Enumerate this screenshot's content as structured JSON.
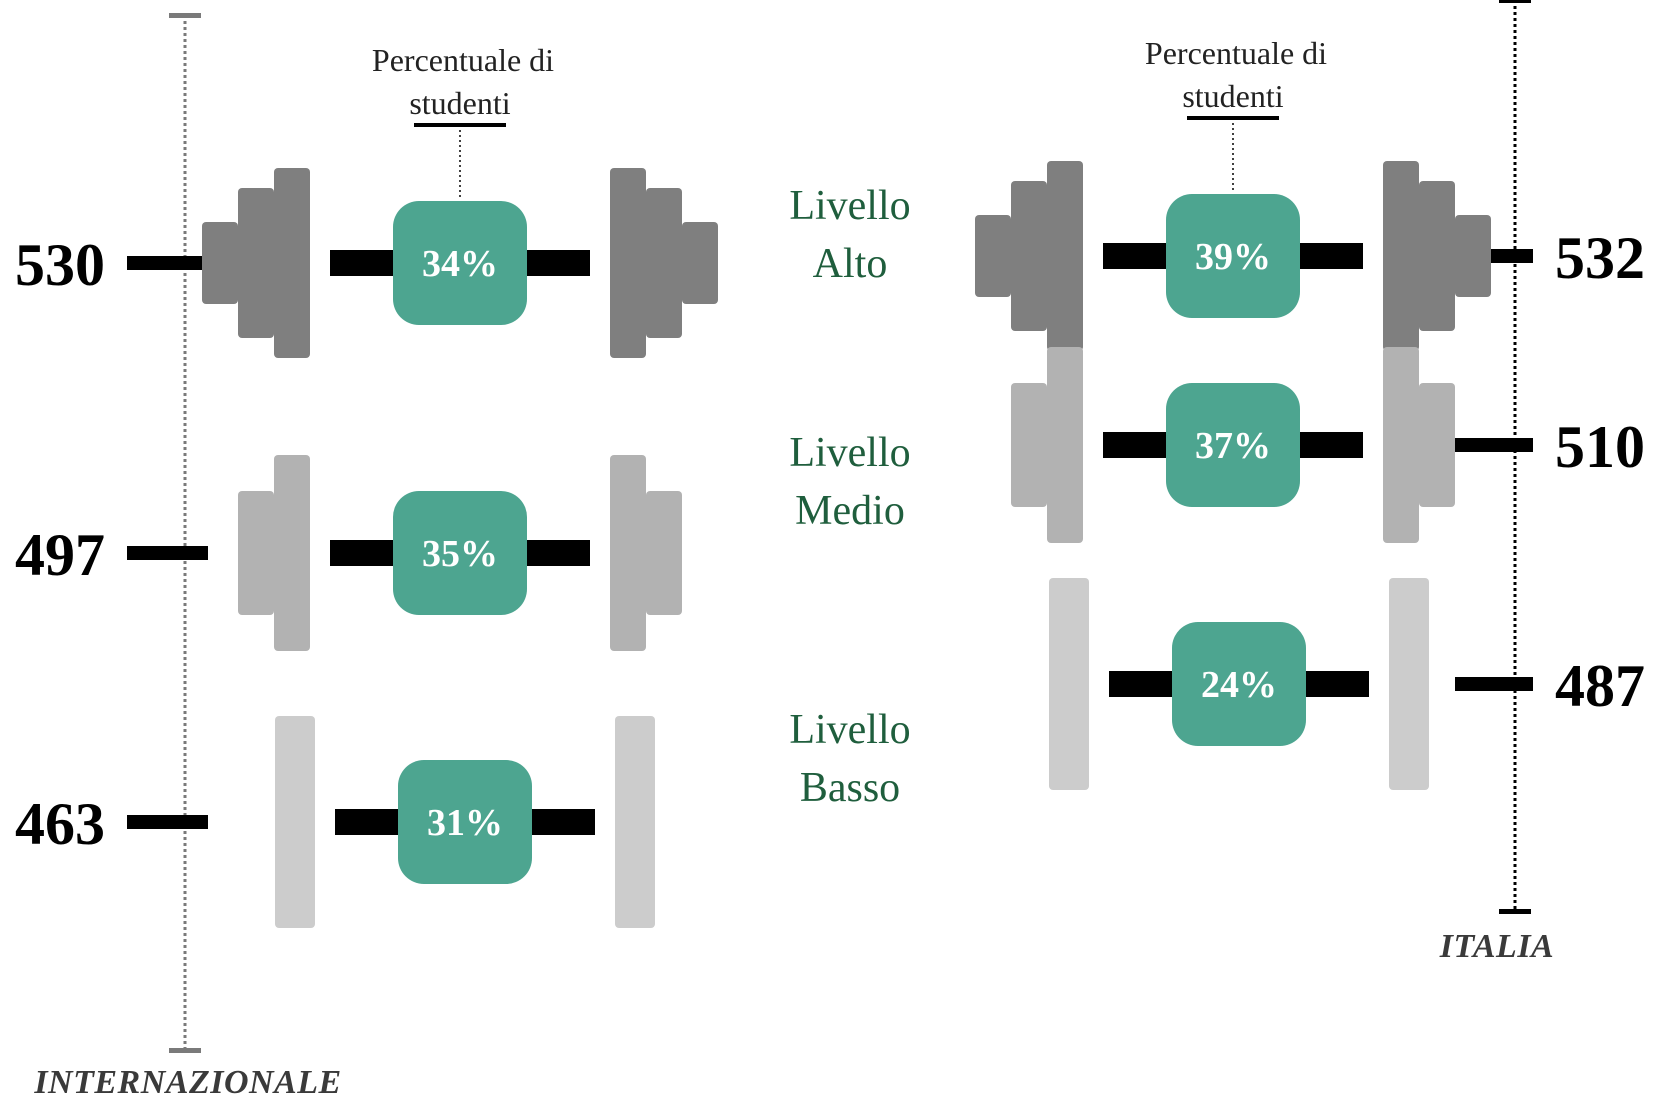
{
  "annotation": {
    "line1": "Percentuale di",
    "line2": "studenti"
  },
  "colors": {
    "badge": "#4da590",
    "plate_dark": "#7f7f7f",
    "plate_mid": "#b2b2b2",
    "plate_light": "#cccccc",
    "bar": "#000000",
    "level_text": "#1f5e3d",
    "axis_left": "#7a7a7a",
    "axis_right": "#000000"
  },
  "chart_data": [
    {
      "type": "dumbbell-infographic",
      "axis_label": "INTERNAZIONALE",
      "series": [
        {
          "level": "Alto",
          "score": 530,
          "percent": 34,
          "percent_label": "34%"
        },
        {
          "level": "Medio",
          "score": 497,
          "percent": 35,
          "percent_label": "35%"
        },
        {
          "level": "Basso",
          "score": 463,
          "percent": 31,
          "percent_label": "31%"
        }
      ]
    },
    {
      "type": "dumbbell-infographic",
      "axis_label": "ITALIA",
      "series": [
        {
          "level": "Alto",
          "score": 532,
          "percent": 39,
          "percent_label": "39%"
        },
        {
          "level": "Medio",
          "score": 510,
          "percent": 37,
          "percent_label": "37%"
        },
        {
          "level": "Basso",
          "score": 487,
          "percent": 24,
          "percent_label": "24%"
        }
      ]
    }
  ],
  "levels": [
    {
      "line1": "Livello",
      "line2": "Alto"
    },
    {
      "line1": "Livello",
      "line2": "Medio"
    },
    {
      "line1": "Livello",
      "line2": "Basso"
    }
  ]
}
